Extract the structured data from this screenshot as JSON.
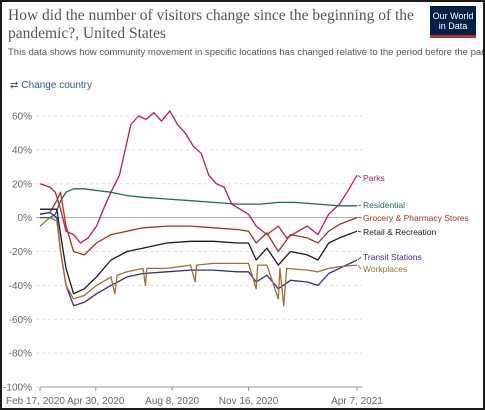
{
  "header": {
    "title": "How did the number of visitors change since the beginning of the pandemic?, United States",
    "subtitle": "This data shows how community movement in specific locations has changed relative to the period before the pandemic.",
    "logo_text": "Our World in Data",
    "change_country_label": "Change country"
  },
  "colors": {
    "Parks": "#c2185b",
    "Residential": "#1b6b60",
    "Grocery & Pharmacy Stores": "#a5331e",
    "Retail & Recreation": "#1a1a1a",
    "Transit Stations": "#3a2a8c",
    "Workplaces": "#a0702c",
    "grid": "#dddddd",
    "zero_line": "#aaaaaa"
  },
  "chart_data": {
    "type": "line",
    "title": "How did the number of visitors change since the beginning of the pandemic?, United States",
    "subtitle": "This data shows how community movement in specific locations has changed relative to the period before the pandemic.",
    "x_tick_labels": [
      "Feb 17, 2020",
      "Apr 30, 2020",
      "Aug 8, 2020",
      "Nov 16, 2020",
      "Apr 7, 2021"
    ],
    "x_ticks": [
      "2020-02-17",
      "2020-04-30",
      "2020-08-08",
      "2020-11-16",
      "2021-04-07"
    ],
    "xlim": [
      "2020-02-17",
      "2021-04-07"
    ],
    "y_tick_labels": [
      "60%",
      "40%",
      "20%",
      "0%",
      "-20%",
      "-40%",
      "-60%",
      "-80%",
      "-100%"
    ],
    "ylim": [
      -100,
      60
    ],
    "grid": true,
    "legend": "labels at right end of lines",
    "series": [
      {
        "name": "Parks",
        "x": [
          "2020-02-17",
          "2020-03-01",
          "2020-03-08",
          "2020-03-15",
          "2020-03-22",
          "2020-04-01",
          "2020-04-10",
          "2020-04-20",
          "2020-05-01",
          "2020-05-10",
          "2020-05-20",
          "2020-05-31",
          "2020-06-15",
          "2020-06-25",
          "2020-07-05",
          "2020-07-15",
          "2020-07-25",
          "2020-08-05",
          "2020-08-15",
          "2020-08-25",
          "2020-09-05",
          "2020-09-15",
          "2020-09-25",
          "2020-10-05",
          "2020-10-15",
          "2020-10-25",
          "2020-11-05",
          "2020-11-16",
          "2020-11-26",
          "2020-12-10",
          "2020-12-25",
          "2021-01-05",
          "2021-01-20",
          "2021-02-01",
          "2021-02-15",
          "2021-03-01",
          "2021-03-15",
          "2021-03-25",
          "2021-04-07"
        ],
        "y": [
          20,
          18,
          15,
          5,
          -8,
          -10,
          -15,
          -12,
          -5,
          5,
          15,
          25,
          55,
          60,
          58,
          62,
          57,
          63,
          55,
          50,
          42,
          38,
          25,
          20,
          18,
          8,
          5,
          2,
          -5,
          -10,
          -5,
          -12,
          -8,
          -5,
          -10,
          2,
          8,
          15,
          25
        ]
      },
      {
        "name": "Residential",
        "x": [
          "2020-02-17",
          "2020-03-01",
          "2020-03-08",
          "2020-03-15",
          "2020-03-22",
          "2020-04-01",
          "2020-04-15",
          "2020-05-01",
          "2020-05-20",
          "2020-06-10",
          "2020-07-01",
          "2020-08-01",
          "2020-09-01",
          "2020-10-01",
          "2020-11-01",
          "2020-11-16",
          "2020-12-01",
          "2020-12-25",
          "2021-01-15",
          "2021-02-15",
          "2021-03-15",
          "2021-04-07"
        ],
        "y": [
          0,
          0,
          2,
          10,
          15,
          17,
          17,
          16,
          15,
          13,
          12,
          11,
          10,
          9,
          8,
          8,
          8,
          9,
          9,
          8,
          7,
          7
        ]
      },
      {
        "name": "Grocery & Pharmacy Stores",
        "x": [
          "2020-02-17",
          "2020-03-01",
          "2020-03-10",
          "2020-03-15",
          "2020-03-22",
          "2020-04-01",
          "2020-04-15",
          "2020-05-01",
          "2020-05-20",
          "2020-06-10",
          "2020-07-01",
          "2020-08-01",
          "2020-09-01",
          "2020-10-01",
          "2020-11-01",
          "2020-11-16",
          "2020-11-26",
          "2020-12-10",
          "2020-12-25",
          "2021-01-10",
          "2021-02-01",
          "2021-02-15",
          "2021-03-01",
          "2021-03-15",
          "2021-04-07"
        ],
        "y": [
          2,
          3,
          10,
          15,
          -5,
          -20,
          -22,
          -15,
          -10,
          -8,
          -6,
          -5,
          -5,
          -6,
          -7,
          -8,
          -15,
          -9,
          -20,
          -10,
          -12,
          -15,
          -8,
          -4,
          0
        ]
      },
      {
        "name": "Retail & Recreation",
        "x": [
          "2020-02-17",
          "2020-03-01",
          "2020-03-10",
          "2020-03-15",
          "2020-03-22",
          "2020-04-01",
          "2020-04-15",
          "2020-05-01",
          "2020-05-20",
          "2020-06-10",
          "2020-07-01",
          "2020-08-01",
          "2020-09-01",
          "2020-10-01",
          "2020-11-01",
          "2020-11-16",
          "2020-11-26",
          "2020-12-10",
          "2020-12-25",
          "2021-01-10",
          "2021-02-01",
          "2021-02-15",
          "2021-03-01",
          "2021-03-15",
          "2021-04-07"
        ],
        "y": [
          5,
          5,
          5,
          -10,
          -30,
          -45,
          -42,
          -35,
          -25,
          -20,
          -18,
          -15,
          -14,
          -14,
          -15,
          -15,
          -25,
          -18,
          -28,
          -20,
          -22,
          -25,
          -15,
          -12,
          -8
        ]
      },
      {
        "name": "Transit Stations",
        "x": [
          "2020-02-17",
          "2020-03-01",
          "2020-03-10",
          "2020-03-15",
          "2020-03-22",
          "2020-04-01",
          "2020-04-15",
          "2020-05-01",
          "2020-05-20",
          "2020-06-10",
          "2020-07-01",
          "2020-08-01",
          "2020-09-01",
          "2020-10-01",
          "2020-11-01",
          "2020-11-16",
          "2020-11-26",
          "2020-12-10",
          "2020-12-25",
          "2021-01-10",
          "2021-02-01",
          "2021-02-15",
          "2021-03-01",
          "2021-03-15",
          "2021-04-07"
        ],
        "y": [
          2,
          3,
          0,
          -20,
          -40,
          -52,
          -50,
          -45,
          -40,
          -35,
          -33,
          -32,
          -31,
          -31,
          -32,
          -32,
          -38,
          -34,
          -42,
          -37,
          -38,
          -40,
          -33,
          -30,
          -25
        ]
      },
      {
        "name": "Workplaces",
        "x": [
          "2020-02-17",
          "2020-03-01",
          "2020-03-10",
          "2020-03-15",
          "2020-03-22",
          "2020-04-01",
          "2020-04-15",
          "2020-05-01",
          "2020-05-20",
          "2020-05-25",
          "2020-05-28",
          "2020-06-10",
          "2020-07-01",
          "2020-07-04",
          "2020-07-06",
          "2020-08-01",
          "2020-09-01",
          "2020-09-07",
          "2020-09-09",
          "2020-10-01",
          "2020-11-01",
          "2020-11-16",
          "2020-11-26",
          "2020-11-28",
          "2020-12-10",
          "2020-12-25",
          "2020-12-27",
          "2021-01-01",
          "2021-01-05",
          "2021-02-01",
          "2021-02-15",
          "2021-03-01",
          "2021-03-15",
          "2021-04-07"
        ],
        "y": [
          -5,
          0,
          -2,
          -20,
          -40,
          -48,
          -46,
          -40,
          -35,
          -45,
          -34,
          -32,
          -30,
          -40,
          -30,
          -30,
          -28,
          -38,
          -28,
          -27,
          -27,
          -27,
          -42,
          -28,
          -28,
          -48,
          -30,
          -52,
          -30,
          -31,
          -32,
          -30,
          -29,
          -28
        ]
      }
    ]
  }
}
